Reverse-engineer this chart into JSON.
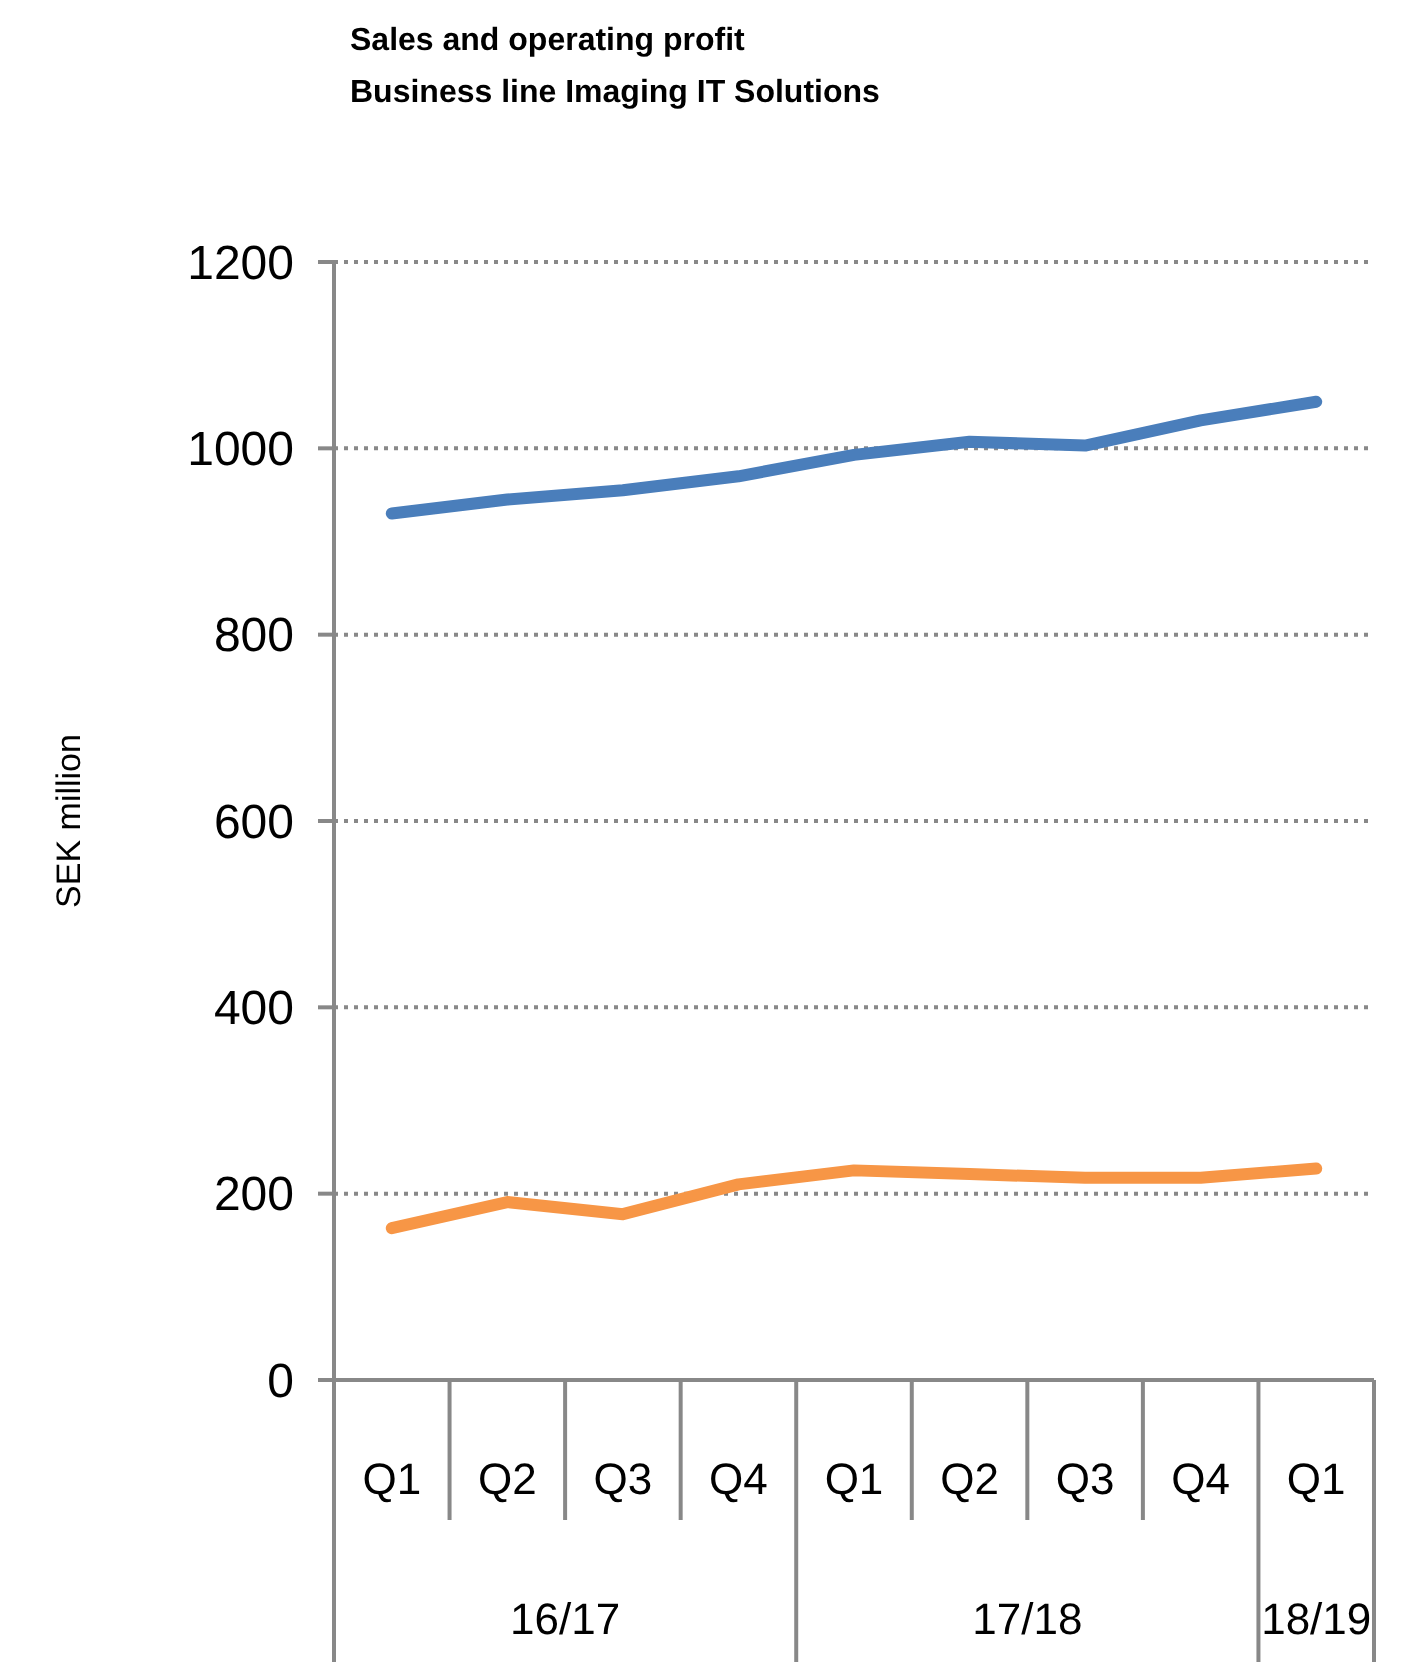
{
  "chart_data": {
    "type": "line",
    "title": "Sales and operating profit",
    "subtitle": "Business line Imaging IT Solutions",
    "ylabel": "SEK million",
    "categories": [
      "Q1",
      "Q2",
      "Q3",
      "Q4",
      "Q1",
      "Q2",
      "Q3",
      "Q4",
      "Q1"
    ],
    "annotations": [
      "16/17",
      "17/18",
      "18/19"
    ],
    "series": [
      {
        "color": "#4a7ebb",
        "values": [
          930,
          945,
          955,
          970,
          993,
          1007,
          1003,
          1030,
          1050
        ]
      },
      {
        "color": "#f79646",
        "values": [
          163,
          191,
          178,
          210,
          225,
          221,
          217,
          217,
          227
        ]
      }
    ],
    "ylim": [
      0,
      1200
    ],
    "yticks": [
      0,
      200,
      400,
      600,
      800,
      1000,
      1200
    ],
    "grid": "y"
  }
}
